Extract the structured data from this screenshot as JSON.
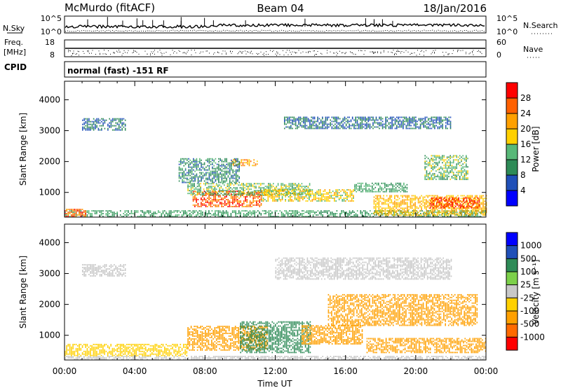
{
  "header": {
    "station": "McMurdo (fitACF)",
    "beam": "Beam 04",
    "date": "18/Jan/2016"
  },
  "strip_panels": {
    "nsky_label": "N.Sky",
    "nsearch_label": "N.Search",
    "nsky_ticks": [
      "10^5",
      "10^0"
    ],
    "nsearch_ticks": [
      "10^5",
      "10^0"
    ],
    "freq_label": "Freq.",
    "freq_unit": "[MHz]",
    "freq_ticks": [
      "18",
      "8"
    ],
    "nave_label": "Nave",
    "nave_ticks": [
      "60",
      "0"
    ],
    "cpid_label": "CPID",
    "cpid_text": "normal (fast) -151 RF"
  },
  "colors": {
    "power_scale": [
      "#0000ff",
      "#2050b8",
      "#2e8b57",
      "#58b878",
      "#ffd000",
      "#ffa000",
      "#ff6000",
      "#ff0000"
    ],
    "velocity_scale": [
      "#ff0000",
      "#ff6a00",
      "#ffa000",
      "#ffd000",
      "#c8c8c8",
      "#7cd04a",
      "#2e8b57",
      "#2050b8",
      "#0000ff"
    ]
  },
  "chart_data": [
    {
      "type": "heatmap",
      "title": "",
      "xlabel": "",
      "ylabel": "Slant Range [km]",
      "xlim": [
        "00:00",
        "24:00"
      ],
      "ylim": [
        200,
        4600
      ],
      "x_tick_labels": [
        "00:00",
        "04:00",
        "08:00",
        "12:00",
        "16:00",
        "20:00",
        "00:00"
      ],
      "y_ticks": [
        1000,
        2000,
        3000,
        4000
      ],
      "colorbar": {
        "label": "Power [dB]",
        "ticks": [
          4,
          8,
          12,
          16,
          20,
          24,
          28
        ],
        "range": [
          0,
          32
        ]
      },
      "regions": [
        {
          "t": [
            0.0,
            24.0
          ],
          "range": [
            200,
            420
          ],
          "power_db": 12
        },
        {
          "t": [
            0.0,
            1.2
          ],
          "range": [
            200,
            450
          ],
          "power_db": 26
        },
        {
          "t": [
            7.3,
            11.2
          ],
          "range": [
            520,
            1020
          ],
          "power_db": 26
        },
        {
          "t": [
            7.0,
            14.0
          ],
          "range": [
            900,
            1300
          ],
          "power_db": 14
        },
        {
          "t": [
            11.2,
            16.5
          ],
          "range": [
            700,
            1100
          ],
          "power_db": 18
        },
        {
          "t": [
            9.5,
            11.0
          ],
          "range": [
            1850,
            2050
          ],
          "power_db": 22
        },
        {
          "t": [
            6.5,
            10.0
          ],
          "range": [
            1300,
            2100
          ],
          "power_db": 10
        },
        {
          "t": [
            16.5,
            19.5
          ],
          "range": [
            1000,
            1300
          ],
          "power_db": 12
        },
        {
          "t": [
            17.6,
            24.0
          ],
          "range": [
            240,
            900
          ],
          "power_db": 20
        },
        {
          "t": [
            20.8,
            23.6
          ],
          "range": [
            480,
            800
          ],
          "power_db": 28
        },
        {
          "t": [
            20.5,
            23.0
          ],
          "range": [
            1400,
            2200
          ],
          "power_db": 14
        },
        {
          "t": [
            12.5,
            22.0
          ],
          "range": [
            3050,
            3450
          ],
          "power_db": 8
        },
        {
          "t": [
            1.0,
            3.5
          ],
          "range": [
            3000,
            3400
          ],
          "power_db": 8
        }
      ]
    },
    {
      "type": "heatmap",
      "title": "",
      "xlabel": "Time UT",
      "ylabel": "Slant Range [km]",
      "xlim": [
        "00:00",
        "24:00"
      ],
      "ylim": [
        200,
        4600
      ],
      "x_tick_labels": [
        "00:00",
        "04:00",
        "08:00",
        "12:00",
        "16:00",
        "20:00",
        "00:00"
      ],
      "y_ticks": [
        1000,
        2000,
        3000,
        4000
      ],
      "colorbar": {
        "label": "Velocity [m s⁻¹]",
        "ticks": [
          "1000",
          "500",
          "100",
          "25",
          "-25",
          "-100",
          "-500",
          "-1000"
        ]
      },
      "regions": [
        {
          "t": [
            0.0,
            24.0
          ],
          "range": [
            200,
            320
          ],
          "velocity": 0
        },
        {
          "t": [
            0.0,
            7.0
          ],
          "range": [
            320,
            720
          ],
          "velocity": -60
        },
        {
          "t": [
            7.0,
            11.5
          ],
          "range": [
            500,
            1300
          ],
          "velocity": -300
        },
        {
          "t": [
            10.0,
            14.0
          ],
          "range": [
            420,
            1450
          ],
          "velocity": 200
        },
        {
          "t": [
            13.5,
            17.0
          ],
          "range": [
            700,
            1300
          ],
          "velocity": -300
        },
        {
          "t": [
            17.2,
            24.0
          ],
          "range": [
            420,
            900
          ],
          "velocity": -300
        },
        {
          "t": [
            15.0,
            23.5
          ],
          "range": [
            1300,
            2300
          ],
          "velocity": -300
        },
        {
          "t": [
            12.0,
            22.0
          ],
          "range": [
            2800,
            3500
          ],
          "velocity": 0
        },
        {
          "t": [
            1.0,
            3.5
          ],
          "range": [
            2900,
            3300
          ],
          "velocity": 0
        }
      ]
    }
  ]
}
